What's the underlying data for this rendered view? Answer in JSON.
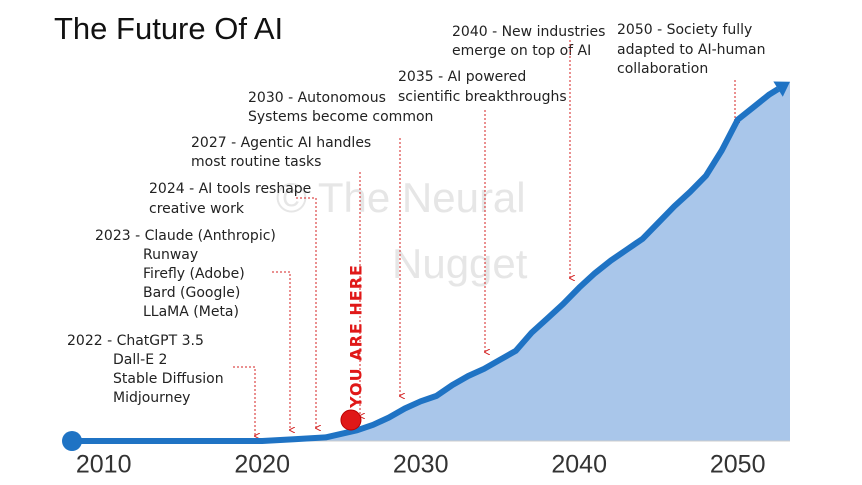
{
  "chart_data": {
    "type": "area",
    "title": "The Future Of AI",
    "x": [
      2008,
      2020,
      2022,
      2024,
      2025,
      2026,
      2027,
      2028,
      2029,
      2030,
      2031,
      2032,
      2033,
      2034,
      2035,
      2036,
      2037,
      2038,
      2039,
      2040,
      2041,
      2042,
      2043,
      2044,
      2045,
      2046,
      2047,
      2048,
      2049,
      2050,
      2051,
      2052,
      2053.3
    ],
    "values": [
      0,
      0,
      0.5,
      1,
      2,
      3,
      4.5,
      6.5,
      9,
      11,
      12.5,
      15.5,
      18,
      20,
      22.5,
      25,
      30,
      34,
      38,
      42.5,
      46.5,
      50,
      53,
      56,
      60.5,
      65,
      69,
      73.5,
      80.5,
      89,
      92.5,
      96,
      99.5
    ],
    "color": "#1f73c4",
    "fill": "#a9c6ea",
    "xlim": [
      2008,
      2053.3
    ],
    "xticks": [
      2010,
      2020,
      2030,
      2040,
      2050
    ],
    "ylim": [
      0,
      100
    ],
    "annotations": [
      {
        "lines": [
          "2022 - ChatGPT 3.5",
          "Dall-E 2",
          "Stable Diffusion",
          "Midjourney"
        ]
      },
      {
        "lines": [
          "2023 - Claude (Anthropic)",
          "Runway",
          "Firefly (Adobe)",
          "Bard (Google)",
          "LLaMA (Meta)"
        ]
      },
      {
        "lines": [
          "2024 - AI tools reshape",
          "creative work"
        ]
      },
      {
        "lines": [
          "2027 - Agentic AI handles",
          "most routine tasks"
        ]
      },
      {
        "lines": [
          "2030 - Autonomous",
          "Systems become common"
        ]
      },
      {
        "lines": [
          "2035 - AI powered",
          "scientific breakthroughs"
        ]
      },
      {
        "lines": [
          "2040 - New industries",
          "emerge on top of AI"
        ]
      },
      {
        "lines": [
          "2050 - Society fully",
          "adapted to AI-human",
          "collaboration"
        ]
      }
    ],
    "marker_label": "YOU ARE HERE",
    "marker_x": 2025.6,
    "watermark": [
      "© The Neural",
      "Nugget"
    ]
  }
}
